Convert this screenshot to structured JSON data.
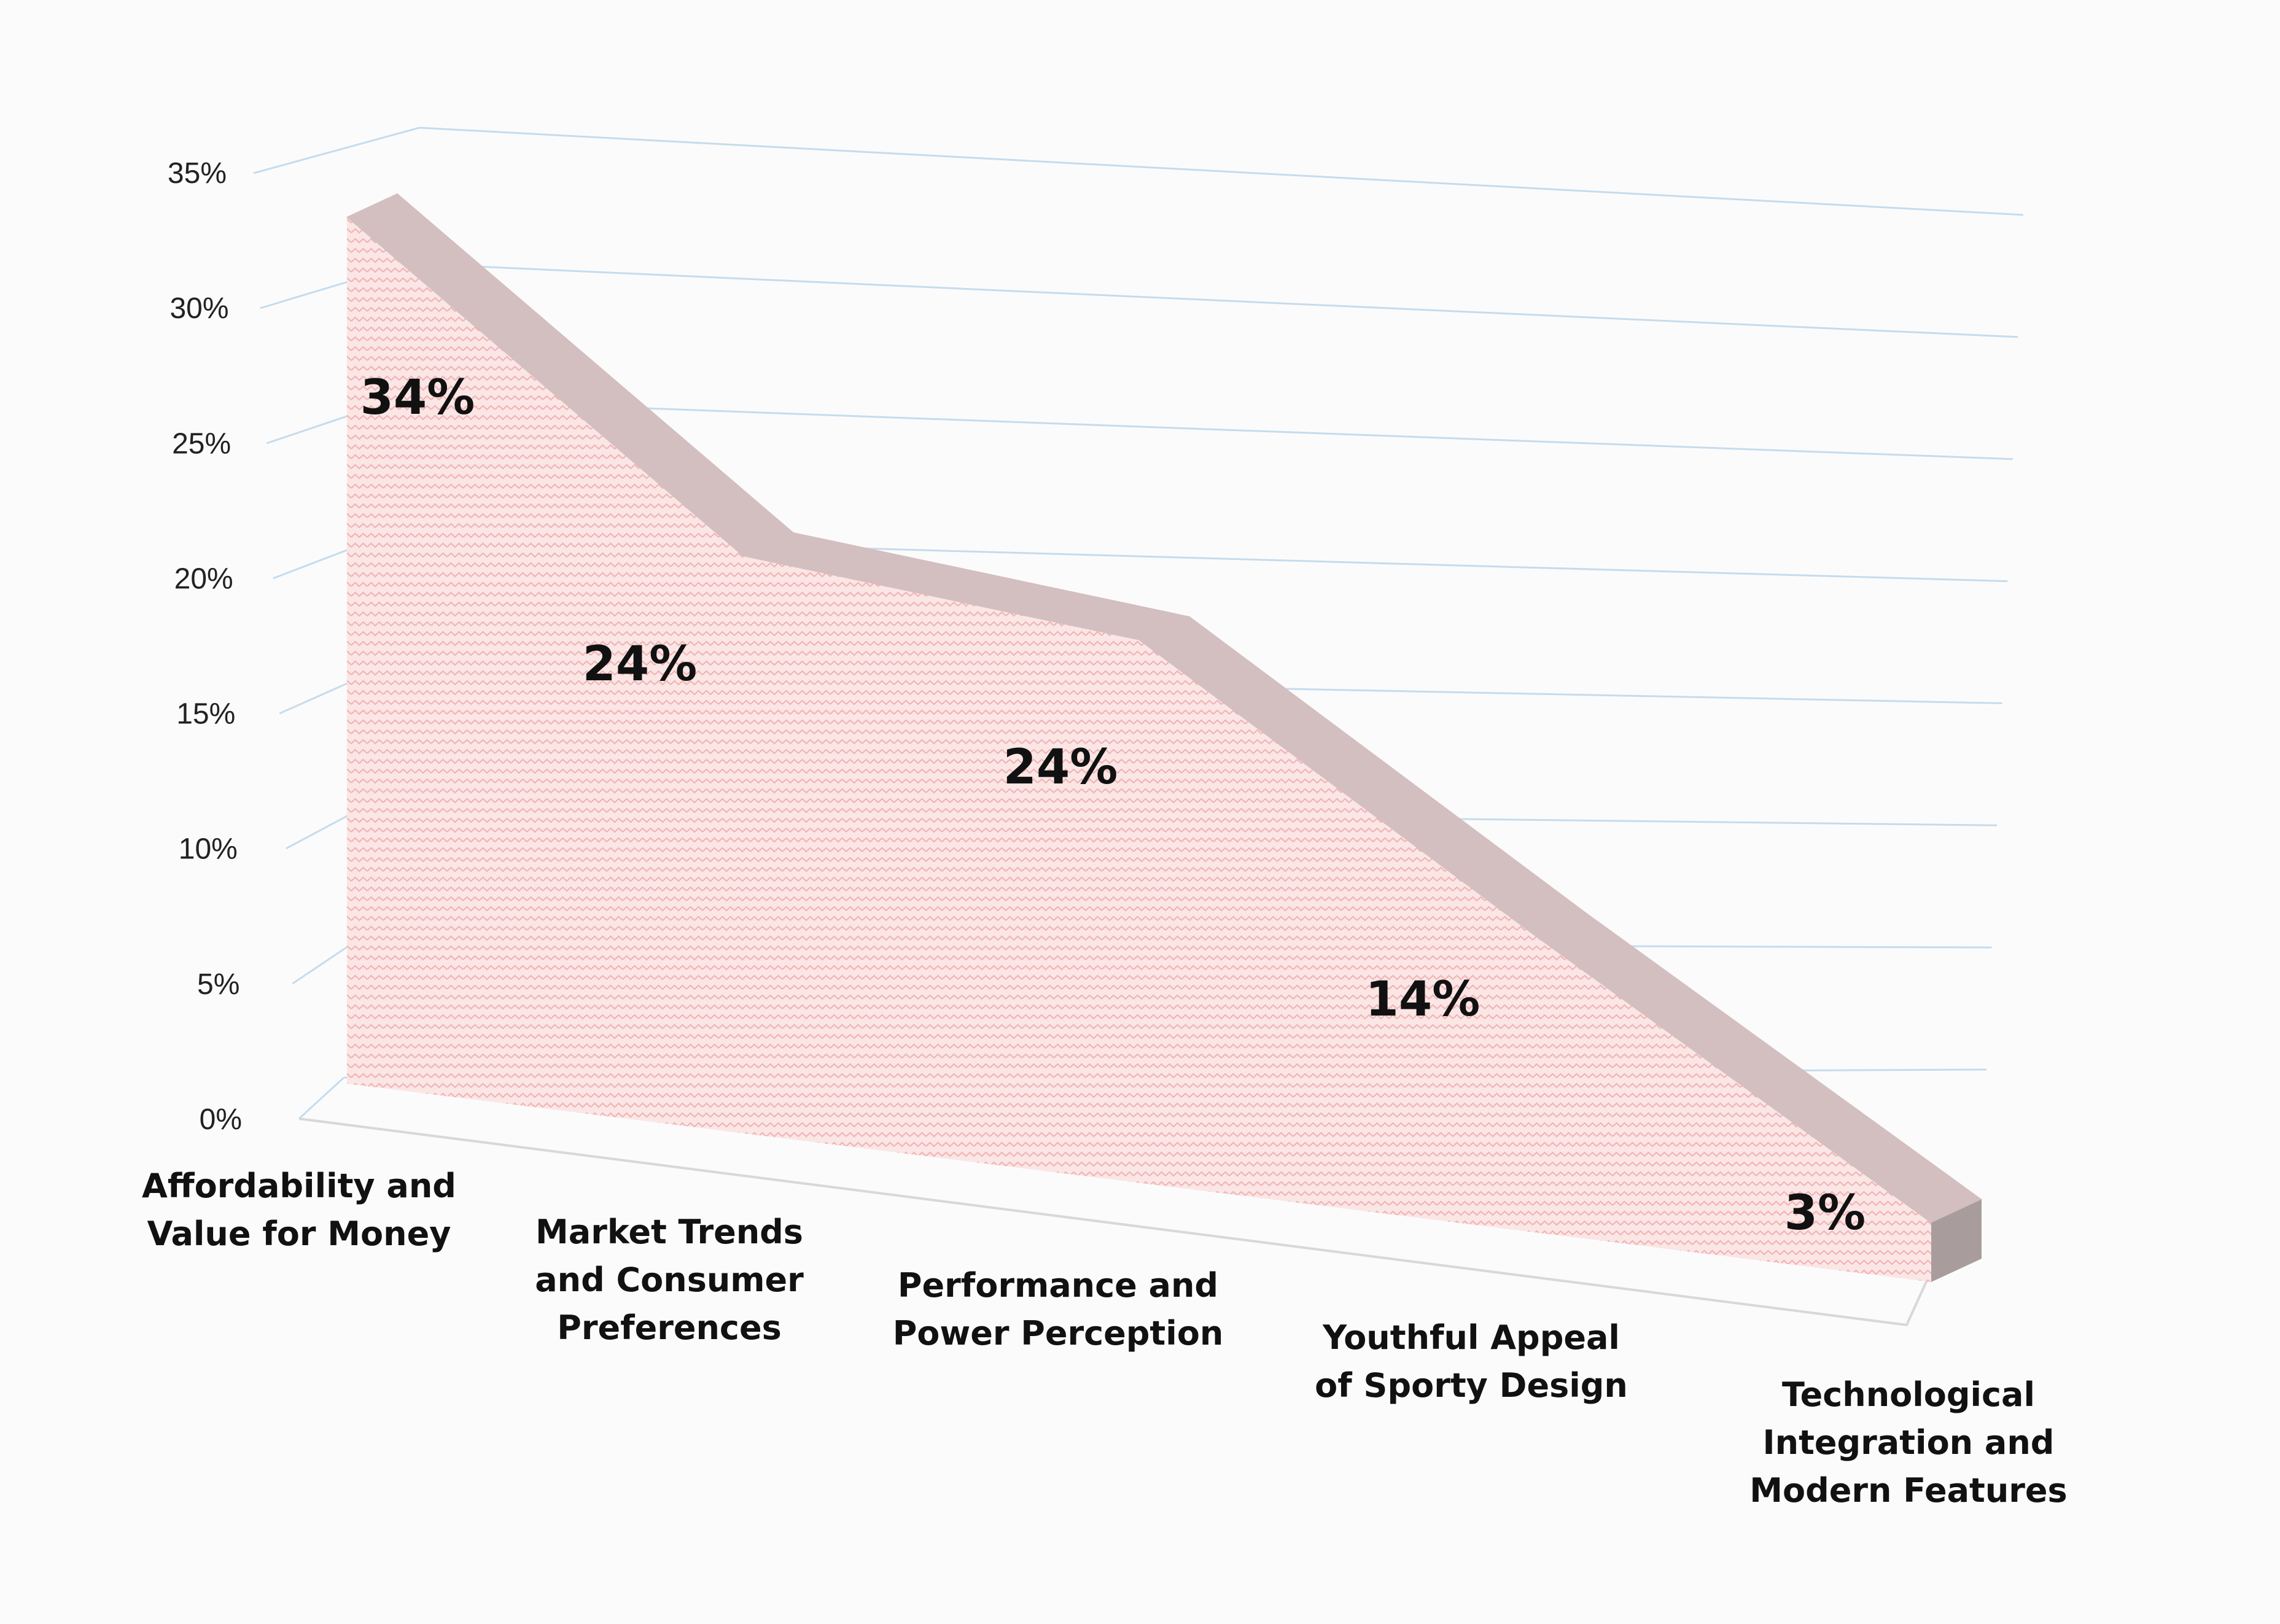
{
  "chart_data": {
    "type": "area",
    "title": "",
    "xlabel": "",
    "ylabel": "",
    "categories": [
      [
        "Affordability and",
        "Value for Money"
      ],
      [
        "Market Trends",
        "and Consumer",
        "Preferences"
      ],
      [
        "Performance and",
        "Power Perception"
      ],
      [
        "Youthful Appeal",
        "of Sporty Design"
      ],
      [
        "Technological",
        "Integration and",
        "Modern Features"
      ]
    ],
    "series": [
      {
        "values": [
          34,
          24,
          24,
          14,
          3
        ],
        "labels": [
          "34%",
          "24%",
          "24%",
          "14%",
          "3%"
        ]
      }
    ],
    "ylim": [
      0,
      35
    ],
    "yticks": [
      "0%",
      "5%",
      "10%",
      "15%",
      "20%",
      "25%",
      "30%",
      "35%"
    ],
    "grid": true,
    "style": "3d-area",
    "colors": {
      "area_fill": "#fbe6e6",
      "area_pattern": "#f2b3b3",
      "top_face": "#d3bfc0",
      "side_face": "#a99c9d",
      "gridline": "#c5dcec",
      "floor": "#d8d8d8"
    }
  }
}
